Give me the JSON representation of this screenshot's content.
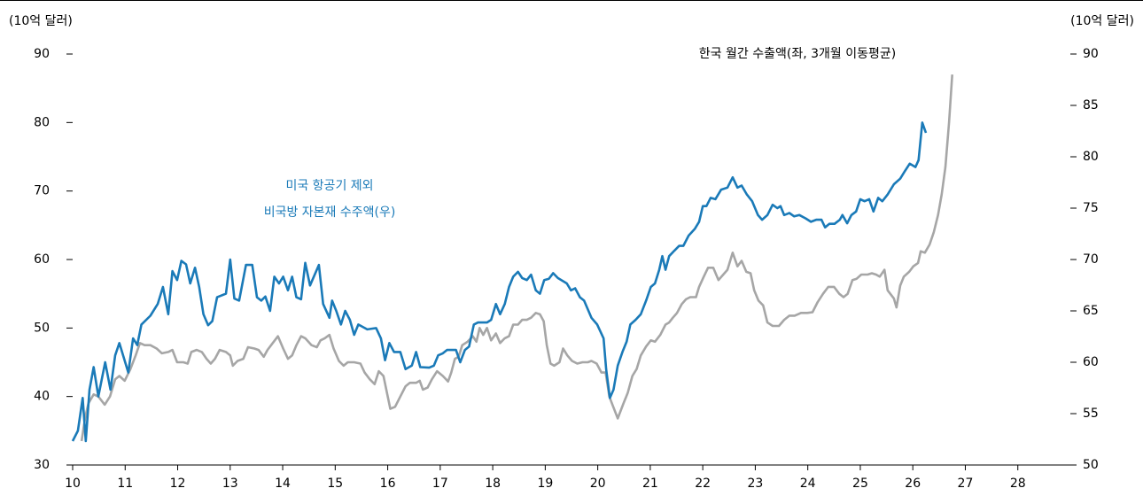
{
  "chart_data": {
    "type": "line",
    "y_label": "(10억 달러)",
    "y2_label": "(10억 달러)",
    "xlim": [
      10,
      29
    ],
    "xticks": [
      10,
      11,
      12,
      13,
      14,
      15,
      16,
      17,
      18,
      19,
      20,
      21,
      22,
      23,
      24,
      25,
      26,
      27,
      28
    ],
    "ylim": [
      30,
      90
    ],
    "yticks": [
      30,
      40,
      50,
      60,
      70,
      80,
      90
    ],
    "y2lim": [
      50,
      90
    ],
    "y2ticks": [
      50,
      55,
      60,
      65,
      70,
      75,
      80,
      85,
      90
    ],
    "series": [
      {
        "name": [
          "한국 월간 수출액(좌, 3개월 이동평균)"
        ],
        "color": "#a6a6a6",
        "axis": "y",
        "x": [
          10.17,
          10.24,
          10.3,
          10.4,
          10.49,
          10.61,
          10.71,
          10.81,
          10.89,
          10.99,
          11.1,
          11.2,
          11.28,
          11.37,
          11.48,
          11.6,
          11.7,
          11.82,
          11.9,
          11.99,
          12.11,
          12.19,
          12.26,
          12.36,
          12.46,
          12.55,
          12.63,
          12.71,
          12.8,
          12.92,
          13.0,
          13.05,
          13.14,
          13.25,
          13.34,
          13.46,
          13.54,
          13.64,
          13.71,
          13.81,
          13.91,
          14.01,
          14.1,
          14.18,
          14.26,
          14.35,
          14.43,
          14.55,
          14.65,
          14.72,
          14.8,
          14.89,
          14.97,
          15.07,
          15.16,
          15.24,
          15.36,
          15.48,
          15.56,
          15.66,
          15.75,
          15.83,
          15.92,
          16.0,
          16.05,
          16.14,
          16.24,
          16.34,
          16.42,
          16.54,
          16.61,
          16.67,
          16.76,
          16.84,
          16.94,
          17.05,
          17.15,
          17.21,
          17.28,
          17.35,
          17.42,
          17.52,
          17.62,
          17.69,
          17.75,
          17.82,
          17.89,
          17.97,
          18.06,
          18.14,
          18.23,
          18.31,
          18.39,
          18.48,
          18.56,
          18.65,
          18.73,
          18.82,
          18.9,
          18.97,
          19.03,
          19.1,
          19.17,
          19.27,
          19.34,
          19.42,
          19.51,
          19.61,
          19.71,
          19.81,
          19.88,
          19.98,
          20.07,
          20.15,
          20.22,
          20.28,
          20.38,
          20.49,
          20.57,
          20.66,
          20.74,
          20.82,
          20.92,
          21.01,
          21.09,
          21.19,
          21.29,
          21.36,
          21.43,
          21.51,
          21.6,
          21.68,
          21.76,
          21.87,
          21.93,
          22.02,
          22.1,
          22.2,
          22.3,
          22.39,
          22.47,
          22.57,
          22.66,
          22.74,
          22.83,
          22.91,
          22.98,
          23.06,
          23.15,
          23.23,
          23.33,
          23.45,
          23.55,
          23.65,
          23.75,
          23.87,
          23.99,
          24.09,
          24.19,
          24.29,
          24.39,
          24.5,
          24.6,
          24.68,
          24.76,
          24.85,
          24.93,
          25.02,
          25.14,
          25.22,
          25.3,
          25.37,
          25.46,
          25.52,
          25.64,
          25.69,
          25.76,
          25.83,
          25.93,
          26.01,
          26.1,
          26.15,
          26.23,
          26.32,
          26.4,
          26.48,
          26.55,
          26.62,
          26.69,
          26.75
        ],
        "values": [
          33.5,
          37,
          39,
          40.3,
          40,
          38.8,
          40,
          42.5,
          43,
          42.3,
          44,
          46,
          47.8,
          47.5,
          47.5,
          47,
          46.3,
          46.5,
          46.8,
          45,
          45,
          44.8,
          46.5,
          46.8,
          46.5,
          45.5,
          44.8,
          45.5,
          46.8,
          46.5,
          46,
          44.5,
          45.2,
          45.5,
          47.2,
          47,
          46.8,
          45.8,
          46.8,
          47.8,
          48.8,
          47,
          45.5,
          46,
          47.5,
          48.8,
          48.5,
          47.5,
          47.2,
          48.2,
          48.5,
          49,
          47,
          45.2,
          44.5,
          45,
          45,
          44.8,
          43.5,
          42.5,
          41.8,
          43.7,
          43,
          40,
          38.2,
          38.5,
          40,
          41.5,
          42,
          42,
          42.3,
          41,
          41.3,
          42.5,
          43.7,
          43,
          42.2,
          43.5,
          45.5,
          45.8,
          47.5,
          48,
          48.8,
          48,
          50,
          49,
          50,
          48.2,
          49.2,
          47.8,
          48.5,
          48.8,
          50.5,
          50.5,
          51.2,
          51.2,
          51.5,
          52.2,
          52,
          51,
          47.5,
          44.8,
          44.5,
          45,
          47,
          46,
          45.2,
          44.8,
          45,
          45,
          45.2,
          44.8,
          43.5,
          43.5,
          40,
          38.8,
          36.8,
          39,
          40.5,
          43,
          44,
          46,
          47.3,
          48.2,
          48,
          49,
          50.5,
          50.8,
          51.5,
          52.2,
          53.5,
          54.2,
          54.5,
          54.5,
          56,
          57.5,
          58.8,
          58.8,
          57,
          57.8,
          58.5,
          61,
          59,
          59.8,
          58.2,
          58,
          55.5,
          54,
          53.3,
          50.8,
          50.3,
          50.3,
          51.2,
          51.8,
          51.8,
          52.2,
          52.2,
          52.3,
          53.8,
          55,
          56,
          56,
          55,
          54.5,
          55,
          57,
          57.2,
          57.8,
          57.8,
          58,
          57.8,
          57.5,
          58.5,
          55.5,
          54.3,
          53,
          56.2,
          57.5,
          58.2,
          59,
          59.5,
          61.2,
          61,
          62.2,
          64,
          66.5,
          69.5,
          73.5,
          80,
          87
        ]
      },
      {
        "name": [
          "미국 항공기 제외",
          "비국방 자본재 수주액(우)"
        ],
        "color": "#1a7ab8",
        "axis": "y2",
        "x": [
          10.0,
          10.1,
          10.19,
          10.25,
          10.32,
          10.4,
          10.49,
          10.62,
          10.72,
          10.81,
          10.89,
          11.06,
          11.15,
          11.23,
          11.31,
          11.48,
          11.62,
          11.72,
          11.82,
          11.9,
          11.99,
          12.07,
          12.16,
          12.24,
          12.33,
          12.41,
          12.49,
          12.58,
          12.66,
          12.75,
          12.92,
          13.0,
          13.08,
          13.17,
          13.3,
          13.42,
          13.51,
          13.59,
          13.67,
          13.76,
          13.84,
          13.93,
          14.01,
          14.1,
          14.18,
          14.26,
          14.35,
          14.43,
          14.52,
          14.69,
          14.77,
          14.89,
          14.94,
          15.02,
          15.11,
          15.19,
          15.28,
          15.36,
          15.44,
          15.61,
          15.78,
          15.87,
          15.95,
          16.03,
          16.12,
          16.24,
          16.34,
          16.46,
          16.54,
          16.62,
          16.79,
          16.88,
          16.96,
          17.05,
          17.13,
          17.3,
          17.38,
          17.47,
          17.55,
          17.64,
          17.72,
          17.89,
          17.97,
          18.06,
          18.14,
          18.23,
          18.31,
          18.39,
          18.48,
          18.56,
          18.65,
          18.73,
          18.82,
          18.9,
          18.98,
          19.07,
          19.15,
          19.24,
          19.41,
          19.49,
          19.57,
          19.66,
          19.74,
          19.88,
          19.99,
          20.11,
          20.16,
          20.23,
          20.3,
          20.38,
          20.47,
          20.55,
          20.62,
          20.72,
          20.82,
          20.92,
          21.01,
          21.09,
          21.17,
          21.23,
          21.29,
          21.36,
          21.46,
          21.55,
          21.63,
          21.73,
          21.85,
          21.93,
          22.0,
          22.07,
          22.15,
          22.24,
          22.35,
          22.47,
          22.57,
          22.66,
          22.74,
          22.84,
          22.94,
          23.05,
          23.13,
          23.23,
          23.33,
          23.42,
          23.48,
          23.55,
          23.65,
          23.74,
          23.84,
          23.96,
          24.06,
          24.16,
          24.26,
          24.33,
          24.41,
          24.51,
          24.61,
          24.66,
          24.75,
          24.83,
          24.92,
          25.0,
          25.08,
          25.17,
          25.25,
          25.34,
          25.42,
          25.52,
          25.64,
          25.76,
          25.84,
          25.94,
          26.05,
          26.11,
          26.18,
          26.25
        ],
        "values": [
          52.33,
          53.33,
          56.53,
          52.33,
          57.33,
          59.53,
          56.67,
          60.0,
          57.33,
          60.67,
          61.87,
          59.0,
          62.33,
          61.67,
          63.67,
          64.53,
          65.67,
          67.33,
          64.67,
          68.87,
          68.0,
          69.87,
          69.53,
          67.67,
          69.2,
          67.33,
          64.67,
          63.6,
          64.0,
          66.33,
          66.67,
          70.0,
          66.2,
          66.0,
          69.47,
          69.47,
          66.33,
          66.0,
          66.4,
          65.0,
          68.33,
          67.67,
          68.33,
          67.0,
          68.33,
          66.33,
          66.13,
          69.67,
          67.47,
          69.47,
          65.67,
          64.33,
          66.0,
          65.0,
          63.67,
          65.0,
          64.13,
          62.67,
          63.67,
          63.2,
          63.33,
          62.33,
          60.2,
          61.87,
          61.0,
          61.0,
          59.33,
          59.67,
          61.0,
          59.53,
          59.47,
          59.67,
          60.67,
          60.87,
          61.2,
          61.2,
          60.0,
          61.2,
          61.53,
          63.67,
          63.87,
          63.87,
          64.13,
          65.67,
          64.67,
          65.67,
          67.33,
          68.33,
          68.8,
          68.2,
          68.0,
          68.53,
          67.0,
          66.67,
          68.0,
          68.13,
          68.67,
          68.2,
          67.67,
          67.0,
          67.2,
          66.33,
          66.0,
          64.33,
          63.67,
          62.33,
          59.33,
          56.53,
          57.33,
          59.67,
          61.0,
          62.0,
          63.67,
          64.13,
          64.67,
          66.0,
          67.33,
          67.67,
          69.0,
          70.33,
          69.0,
          70.33,
          70.87,
          71.33,
          71.33,
          72.33,
          73.0,
          73.67,
          75.2,
          75.2,
          76.0,
          75.87,
          76.8,
          77.0,
          78.0,
          77.0,
          77.2,
          76.33,
          75.67,
          74.33,
          73.87,
          74.33,
          75.33,
          75.0,
          75.2,
          74.33,
          74.53,
          74.2,
          74.33,
          74.0,
          73.67,
          73.87,
          73.87,
          73.13,
          73.47,
          73.47,
          73.87,
          74.33,
          73.53,
          74.33,
          74.67,
          75.87,
          75.67,
          75.87,
          74.67,
          76.0,
          75.67,
          76.33,
          77.33,
          77.87,
          78.53,
          79.33,
          79.0,
          79.67,
          83.33,
          82.33
        ]
      }
    ]
  }
}
